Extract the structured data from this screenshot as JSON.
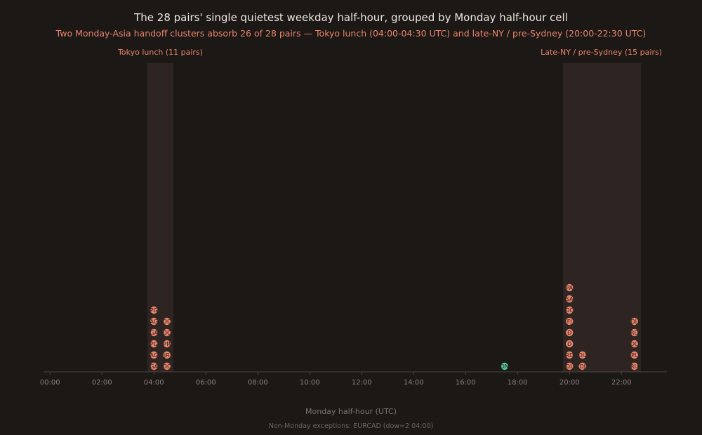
{
  "chart_data": {
    "type": "scatter",
    "title": "The 28 pairs' single quietest weekday half-hour, grouped by Monday half-hour cell",
    "subtitle": "Two Monday-Asia handoff clusters absorb 26 of 28 pairs — Tokyo lunch (04:00-04:30 UTC) and late-NY / pre-Sydney (20:00-22:30 UTC)",
    "xlabel": "Monday half-hour (UTC)",
    "footnote": "Non-Monday exceptions: EURCAD (dow=2 04:00)",
    "xlim": [
      -0.25,
      23.75
    ],
    "x_ticks": [
      "00:00",
      "02:00",
      "04:00",
      "06:00",
      "08:00",
      "10:00",
      "12:00",
      "14:00",
      "16:00",
      "18:00",
      "20:00",
      "22:00"
    ],
    "y_unit": "stack position (1 = bottom)",
    "bands": [
      {
        "label": "Tokyo lunch (11 pairs)",
        "x_start": "03:45",
        "x_end": "04:45"
      },
      {
        "label": "Late-NY / pre-Sydney (15 pairs)",
        "x_start": "19:45",
        "x_end": "22:45"
      }
    ],
    "colors": {
      "background": "#1c1816",
      "cluster_point": "#e8846a",
      "other_point": "#4fc79a",
      "band_fill": "#2e2522",
      "accent_text": "#e8846a"
    },
    "points": [
      {
        "time": "04:00",
        "stack": 1,
        "label": "GA",
        "group": "cluster"
      },
      {
        "time": "04:00",
        "stack": 2,
        "label": "AG",
        "group": "cluster"
      },
      {
        "time": "04:00",
        "stack": 3,
        "label": "PG",
        "group": "cluster"
      },
      {
        "time": "04:00",
        "stack": 4,
        "label": "GA",
        "group": "cluster"
      },
      {
        "time": "04:00",
        "stack": 5,
        "label": "AG",
        "group": "cluster"
      },
      {
        "time": "04:00",
        "stack": 6,
        "label": "PG",
        "group": "cluster"
      },
      {
        "time": "04:30",
        "stack": 1,
        "label": "DC",
        "group": "cluster"
      },
      {
        "time": "04:30",
        "stack": 2,
        "label": "JR",
        "group": "cluster"
      },
      {
        "time": "04:30",
        "stack": 3,
        "label": "PR",
        "group": "cluster"
      },
      {
        "time": "04:30",
        "stack": 4,
        "label": "DC",
        "group": "cluster"
      },
      {
        "time": "04:30",
        "stack": 5,
        "label": "DC",
        "group": "cluster"
      },
      {
        "time": "17:30",
        "stack": 1,
        "label": "DN",
        "group": "other"
      },
      {
        "time": "20:00",
        "stack": 1,
        "label": "DL",
        "group": "cluster"
      },
      {
        "time": "20:00",
        "stack": 2,
        "label": "RD",
        "group": "cluster"
      },
      {
        "time": "20:00",
        "stack": 3,
        "label": "D",
        "group": "cluster"
      },
      {
        "time": "20:00",
        "stack": 4,
        "label": "D",
        "group": "cluster"
      },
      {
        "time": "20:00",
        "stack": 5,
        "label": "FJ",
        "group": "cluster"
      },
      {
        "time": "20:00",
        "stack": 6,
        "label": "DC",
        "group": "cluster"
      },
      {
        "time": "20:00",
        "stack": 7,
        "label": "SA",
        "group": "cluster"
      },
      {
        "time": "20:00",
        "stack": 8,
        "label": "PA",
        "group": "cluster"
      },
      {
        "time": "20:30",
        "stack": 1,
        "label": "DJ",
        "group": "cluster"
      },
      {
        "time": "20:30",
        "stack": 2,
        "label": "DU",
        "group": "cluster"
      },
      {
        "time": "22:30",
        "stack": 1,
        "label": "RU",
        "group": "cluster"
      },
      {
        "time": "22:30",
        "stack": 2,
        "label": "PL",
        "group": "cluster"
      },
      {
        "time": "22:30",
        "stack": 3,
        "label": "DC",
        "group": "cluster"
      },
      {
        "time": "22:30",
        "stack": 4,
        "label": "RD",
        "group": "cluster"
      },
      {
        "time": "22:30",
        "stack": 5,
        "label": "DL",
        "group": "cluster"
      }
    ]
  }
}
